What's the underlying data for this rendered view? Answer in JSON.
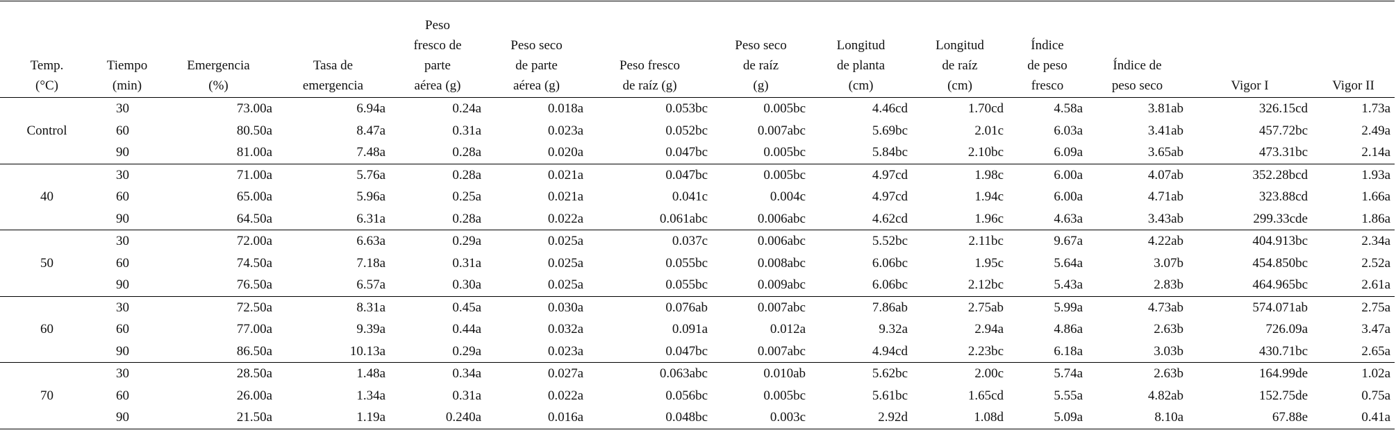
{
  "table": {
    "header": [
      [
        "Temp.",
        "(°C)"
      ],
      [
        "Tiempo",
        "(min)"
      ],
      [
        "Emergencia",
        "(%)"
      ],
      [
        "Tasa de",
        "emergencia"
      ],
      [
        "Peso",
        "fresco de",
        "parte",
        "aérea (g)"
      ],
      [
        "Peso seco",
        "de parte",
        "aérea (g)"
      ],
      [
        "Peso fresco",
        "de raíz (g)"
      ],
      [
        "Peso seco",
        "de raíz",
        "(g)"
      ],
      [
        "Longitud",
        "de planta",
        "(cm)"
      ],
      [
        "Longitud",
        "de raíz",
        "(cm)"
      ],
      [
        "Índice",
        "de peso",
        "fresco"
      ],
      [
        "Índice de",
        "peso seco"
      ],
      [
        "Vigor I"
      ],
      [
        "Vigor II"
      ]
    ],
    "groups": [
      {
        "temp": "Control",
        "rows": [
          [
            "30",
            "73.00a",
            "6.94a",
            "0.24a",
            "0.018a",
            "0.053bc",
            "0.005bc",
            "4.46cd",
            "1.70cd",
            "4.58a",
            "3.81ab",
            "326.15cd",
            "1.73a"
          ],
          [
            "60",
            "80.50a",
            "8.47a",
            "0.31a",
            "0.023a",
            "0.052bc",
            "0.007abc",
            "5.69bc",
            "2.01c",
            "6.03a",
            "3.41ab",
            "457.72bc",
            "2.49a"
          ],
          [
            "90",
            "81.00a",
            "7.48a",
            "0.28a",
            "0.020a",
            "0.047bc",
            "0.005bc",
            "5.84bc",
            "2.10bc",
            "6.09a",
            "3.65ab",
            "473.31bc",
            "2.14a"
          ]
        ]
      },
      {
        "temp": "40",
        "rows": [
          [
            "30",
            "71.00a",
            "5.76a",
            "0.28a",
            "0.021a",
            "0.047bc",
            "0.005bc",
            "4.97cd",
            "1.98c",
            "6.00a",
            "4.07ab",
            "352.28bcd",
            "1.93a"
          ],
          [
            "60",
            "65.00a",
            "5.96a",
            "0.25a",
            "0.021a",
            "0.041c",
            "0.004c",
            "4.97cd",
            "1.94c",
            "6.00a",
            "4.71ab",
            "323.88cd",
            "1.66a"
          ],
          [
            "90",
            "64.50a",
            "6.31a",
            "0.28a",
            "0.022a",
            "0.061abc",
            "0.006abc",
            "4.62cd",
            "1.96c",
            "4.63a",
            "3.43ab",
            "299.33cde",
            "1.86a"
          ]
        ]
      },
      {
        "temp": "50",
        "rows": [
          [
            "30",
            "72.00a",
            "6.63a",
            "0.29a",
            "0.025a",
            "0.037c",
            "0.006abc",
            "5.52bc",
            "2.11bc",
            "9.67a",
            "4.22ab",
            "404.913bc",
            "2.34a"
          ],
          [
            "60",
            "74.50a",
            "7.18a",
            "0.31a",
            "0.025a",
            "0.055bc",
            "0.008abc",
            "6.06bc",
            "1.95c",
            "5.64a",
            "3.07b",
            "454.850bc",
            "2.52a"
          ],
          [
            "90",
            "76.50a",
            "6.57a",
            "0.30a",
            "0.025a",
            "0.055bc",
            "0.009abc",
            "6.06bc",
            "2.12bc",
            "5.43a",
            "2.83b",
            "464.965bc",
            "2.61a"
          ]
        ]
      },
      {
        "temp": "60",
        "rows": [
          [
            "30",
            "72.50a",
            "8.31a",
            "0.45a",
            "0.030a",
            "0.076ab",
            "0.007abc",
            "7.86ab",
            "2.75ab",
            "5.99a",
            "4.73ab",
            "574.071ab",
            "2.75a"
          ],
          [
            "60",
            "77.00a",
            "9.39a",
            "0.44a",
            "0.032a",
            "0.091a",
            "0.012a",
            "9.32a",
            "2.94a",
            "4.86a",
            "2.63b",
            "726.09a",
            "3.47a"
          ],
          [
            "90",
            "86.50a",
            "10.13a",
            "0.29a",
            "0.023a",
            "0.047bc",
            "0.007abc",
            "4.94cd",
            "2.23bc",
            "6.18a",
            "3.03b",
            "430.71bc",
            "2.65a"
          ]
        ]
      },
      {
        "temp": "70",
        "rows": [
          [
            "30",
            "28.50a",
            "1.48a",
            "0.34a",
            "0.027a",
            "0.063abc",
            "0.010ab",
            "5.62bc",
            "2.00c",
            "5.74a",
            "2.63b",
            "164.99de",
            "1.02a"
          ],
          [
            "60",
            "26.00a",
            "1.34a",
            "0.31a",
            "0.022a",
            "0.056bc",
            "0.005bc",
            "5.61bc",
            "1.65cd",
            "5.55a",
            "4.82ab",
            "152.75de",
            "0.75a"
          ],
          [
            "90",
            "21.50a",
            "1.19a",
            "0.240a",
            "0.016a",
            "0.048bc",
            "0.003c",
            "2.92d",
            "1.08d",
            "5.09a",
            "8.10a",
            "67.88e",
            "0.41a"
          ]
        ]
      }
    ]
  }
}
